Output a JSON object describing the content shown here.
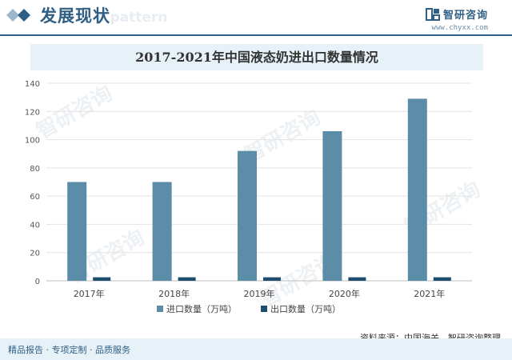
{
  "header": {
    "section_title": "发展现状",
    "brand_name": "智研咨询",
    "brand_url": "www.chyxx.com",
    "ghost_text": "e pattern"
  },
  "chart_data": {
    "type": "bar",
    "title": "2017-2021年中国液态奶进出口数量情况",
    "categories": [
      "2017年",
      "2018年",
      "2019年",
      "2020年",
      "2021年"
    ],
    "series": [
      {
        "name": "进口数量（万吨）",
        "values": [
          70,
          70,
          92,
          106,
          129
        ],
        "color": "#5b8ca8"
      },
      {
        "name": "出口数量（万吨）",
        "values": [
          2.5,
          2.5,
          2.5,
          2.5,
          2.5
        ],
        "color": "#1e4e6e"
      }
    ],
    "ylim": [
      0,
      140
    ],
    "yticks": [
      0,
      20,
      40,
      60,
      80,
      100,
      120,
      140
    ],
    "grid": true,
    "legend": "bottom"
  },
  "source_label": "资料来源：中国海关、智研咨询整理",
  "footer_text": "精品报告 · 专项定制 · 品质服务",
  "watermark": "智研咨询"
}
